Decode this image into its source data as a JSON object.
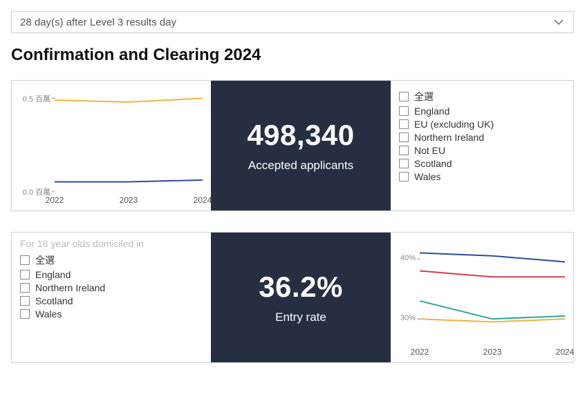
{
  "dropdown": {
    "label": "28 day(s) after Level 3 results day"
  },
  "page_title": "Confirmation and Clearing 2024",
  "panel1": {
    "kpi": {
      "value": "498,340",
      "label": "Accepted applicants"
    },
    "chart": {
      "type": "line",
      "x_labels": [
        "2022",
        "2023",
        "2024"
      ],
      "y_ticks": [
        {
          "value": 0.0,
          "label": "0.0 百萬"
        },
        {
          "value": 0.5,
          "label": "0.5 百萬"
        }
      ],
      "ylim": [
        0.0,
        0.55
      ],
      "series": [
        {
          "name": "series-a",
          "color": "#f1b33c",
          "width": 2,
          "values": [
            0.49,
            0.48,
            0.5
          ]
        },
        {
          "name": "series-b",
          "color": "#2b4aa0",
          "width": 2,
          "values": [
            0.05,
            0.05,
            0.06
          ]
        }
      ],
      "background": "#ffffff",
      "axis_color": "#888888",
      "tick_font_size": 11
    },
    "checklist": {
      "items": [
        {
          "label": "全選"
        },
        {
          "label": "England"
        },
        {
          "label": "EU (excluding UK)"
        },
        {
          "label": "Northern Ireland"
        },
        {
          "label": "Not EU"
        },
        {
          "label": "Scotland"
        },
        {
          "label": "Wales"
        }
      ]
    }
  },
  "panel2": {
    "checklist": {
      "title": "For 18 year olds domiciled in",
      "items": [
        {
          "label": "全選"
        },
        {
          "label": "England"
        },
        {
          "label": "Northern Ireland"
        },
        {
          "label": "Scotland"
        },
        {
          "label": "Wales"
        }
      ]
    },
    "kpi": {
      "value": "36.2%",
      "label": "Entry rate"
    },
    "chart": {
      "type": "line",
      "x_labels": [
        "2022",
        "2023",
        "2024"
      ],
      "y_ticks": [
        {
          "value": 30,
          "label": "30%"
        },
        {
          "value": 40,
          "label": "40%"
        }
      ],
      "ylim": [
        26,
        43
      ],
      "series": [
        {
          "name": "series-blue",
          "color": "#2b4aa0",
          "width": 2,
          "values": [
            41.0,
            40.5,
            39.5
          ]
        },
        {
          "name": "series-red",
          "color": "#d93a4a",
          "width": 2,
          "values": [
            38.0,
            37.0,
            37.0
          ]
        },
        {
          "name": "series-teal",
          "color": "#2aa79b",
          "width": 2,
          "values": [
            33.0,
            30.0,
            30.5
          ]
        },
        {
          "name": "series-yellow",
          "color": "#f1b33c",
          "width": 2,
          "values": [
            30.0,
            29.5,
            30.0
          ]
        }
      ],
      "background": "#ffffff",
      "axis_color": "#888888",
      "tick_font_size": 11
    }
  },
  "colors": {
    "kpi_background": "#262f42",
    "kpi_text": "#ffffff",
    "border": "#d0d0d0"
  }
}
